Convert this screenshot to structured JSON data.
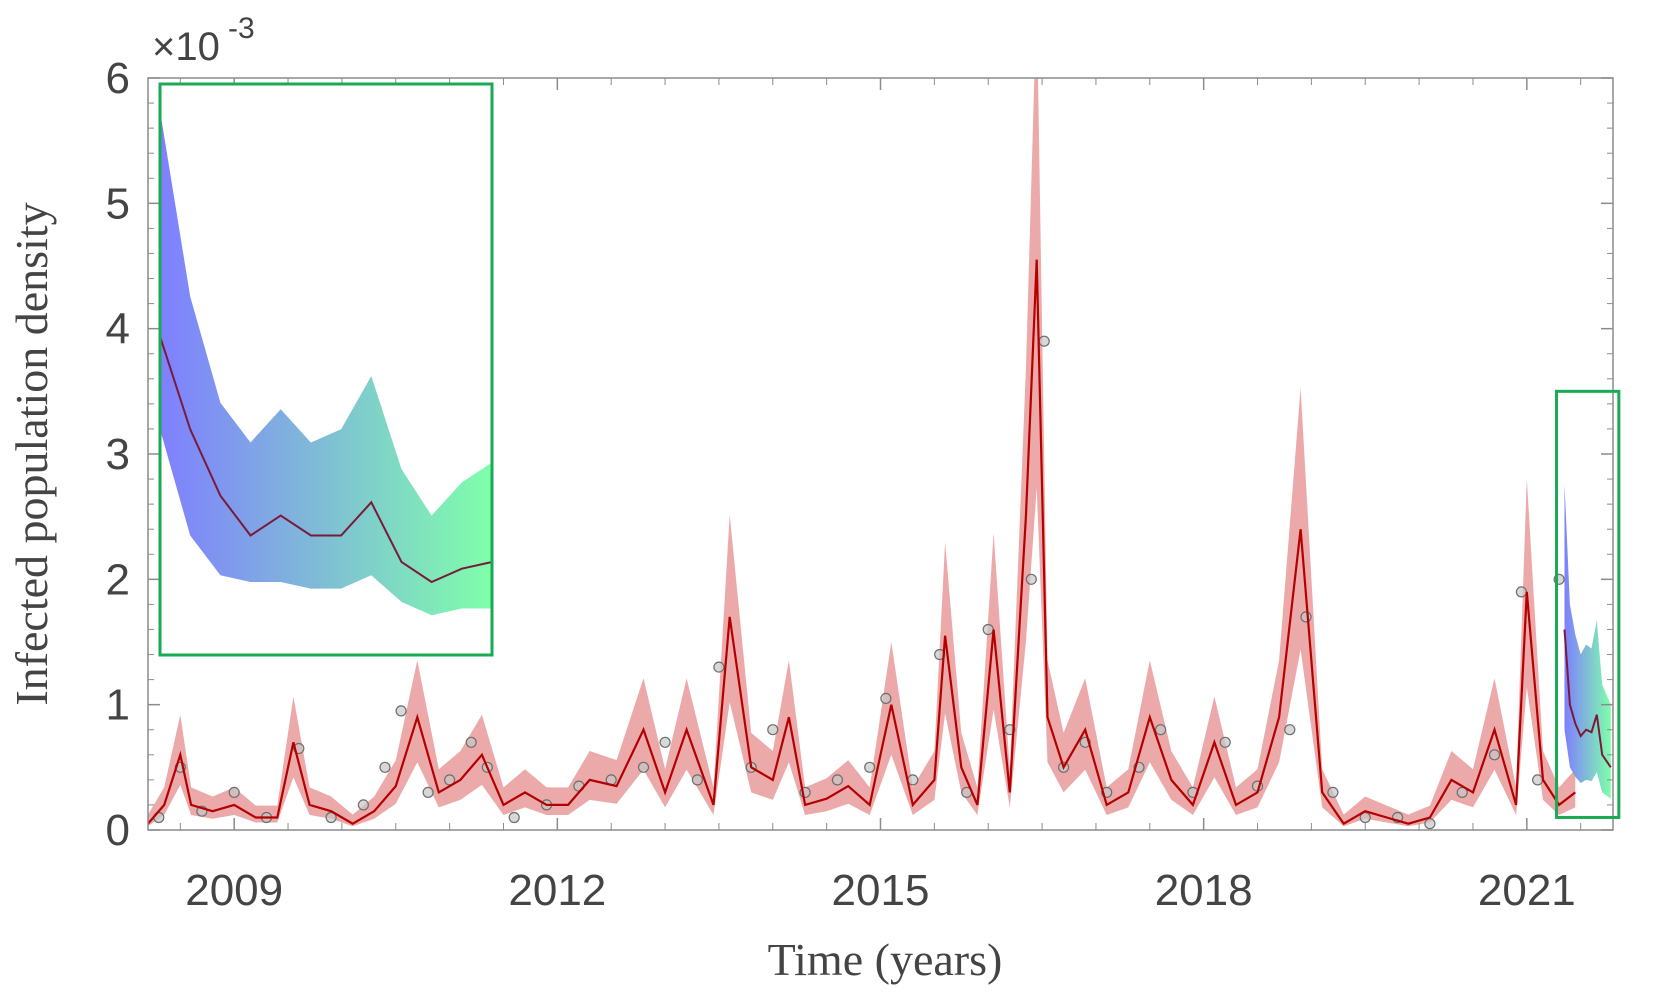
{
  "chart_data": {
    "type": "line",
    "xlabel": "Time (years)",
    "ylabel": "Infected population density",
    "y_exponent_label": "×10",
    "y_exponent_power": "-3",
    "xlim": [
      2008.2,
      2021.8
    ],
    "ylim": [
      0,
      6
    ],
    "x_ticks": [
      2009,
      2012,
      2015,
      2018,
      2021
    ],
    "x_tick_labels": [
      "2009",
      "2012",
      "2015",
      "2018",
      "2021"
    ],
    "y_ticks": [
      0,
      1,
      2,
      3,
      4,
      5,
      6
    ],
    "y_tick_labels": [
      "0",
      "1",
      "2",
      "3",
      "4",
      "5",
      "6"
    ],
    "grid": false,
    "colors": {
      "model_line": "#b40000",
      "model_band": "#e07070",
      "observations_fill": "#c8c8c8",
      "observations_edge": "#6e6e6e",
      "forecast_start": "#7f7fff",
      "forecast_end": "#7fffaa",
      "forecast_line": "#7a1a3a",
      "highlight_box": "#1aaa55",
      "axis": "#8c8c8c",
      "text": "#444444"
    },
    "series": [
      {
        "kind": "model_mean",
        "x": [
          2008.2,
          2008.35,
          2008.5,
          2008.6,
          2008.8,
          2009.0,
          2009.2,
          2009.4,
          2009.55,
          2009.7,
          2009.9,
          2010.1,
          2010.3,
          2010.5,
          2010.7,
          2010.9,
          2011.1,
          2011.3,
          2011.5,
          2011.7,
          2011.9,
          2012.1,
          2012.3,
          2012.55,
          2012.8,
          2013.0,
          2013.2,
          2013.45,
          2013.6,
          2013.8,
          2014.0,
          2014.15,
          2014.3,
          2014.5,
          2014.7,
          2014.9,
          2015.1,
          2015.3,
          2015.5,
          2015.6,
          2015.75,
          2015.9,
          2016.05,
          2016.2,
          2016.35,
          2016.45,
          2016.55,
          2016.7,
          2016.9,
          2017.1,
          2017.3,
          2017.5,
          2017.7,
          2017.9,
          2018.1,
          2018.3,
          2018.5,
          2018.7,
          2018.9,
          2019.1,
          2019.3,
          2019.5,
          2019.7,
          2019.9,
          2020.1,
          2020.3,
          2020.5,
          2020.7,
          2020.9,
          2021.0,
          2021.15,
          2021.3,
          2021.45
        ],
        "y": [
          0.05,
          0.2,
          0.6,
          0.2,
          0.15,
          0.2,
          0.1,
          0.1,
          0.7,
          0.2,
          0.15,
          0.05,
          0.15,
          0.35,
          0.9,
          0.3,
          0.4,
          0.6,
          0.2,
          0.3,
          0.2,
          0.2,
          0.4,
          0.35,
          0.8,
          0.3,
          0.8,
          0.2,
          1.7,
          0.5,
          0.4,
          0.9,
          0.2,
          0.25,
          0.35,
          0.2,
          1.0,
          0.2,
          0.4,
          1.55,
          0.5,
          0.2,
          1.6,
          0.3,
          2.5,
          4.55,
          0.9,
          0.5,
          0.8,
          0.2,
          0.3,
          0.9,
          0.4,
          0.2,
          0.7,
          0.2,
          0.3,
          0.9,
          2.4,
          0.3,
          0.05,
          0.15,
          0.1,
          0.05,
          0.1,
          0.4,
          0.3,
          0.8,
          0.2,
          1.9,
          0.4,
          0.2,
          0.3
        ]
      },
      {
        "kind": "observations",
        "x": [
          2008.3,
          2008.5,
          2008.7,
          2009.0,
          2009.3,
          2009.6,
          2009.9,
          2010.2,
          2010.4,
          2010.55,
          2010.8,
          2011.0,
          2011.2,
          2011.35,
          2011.6,
          2011.9,
          2012.2,
          2012.5,
          2012.8,
          2013.0,
          2013.3,
          2013.5,
          2013.8,
          2014.0,
          2014.3,
          2014.6,
          2014.9,
          2015.05,
          2015.3,
          2015.55,
          2015.8,
          2016.0,
          2016.2,
          2016.4,
          2016.52,
          2016.7,
          2016.9,
          2017.1,
          2017.4,
          2017.6,
          2017.9,
          2018.2,
          2018.5,
          2018.8,
          2018.95,
          2019.2,
          2019.5,
          2019.8,
          2020.1,
          2020.4,
          2020.7,
          2020.95,
          2021.1,
          2021.3
        ],
        "y": [
          0.1,
          0.5,
          0.15,
          0.3,
          0.1,
          0.65,
          0.1,
          0.2,
          0.5,
          0.95,
          0.3,
          0.4,
          0.7,
          0.5,
          0.1,
          0.2,
          0.35,
          0.4,
          0.5,
          0.7,
          0.4,
          1.3,
          0.5,
          0.8,
          0.3,
          0.4,
          0.5,
          1.05,
          0.4,
          1.4,
          0.3,
          1.6,
          0.8,
          2.0,
          3.9,
          0.5,
          0.7,
          0.3,
          0.5,
          0.8,
          0.3,
          0.7,
          0.35,
          0.8,
          1.7,
          0.3,
          0.1,
          0.1,
          0.05,
          0.3,
          0.6,
          1.9,
          0.4,
          2.0
        ]
      },
      {
        "kind": "forecast",
        "x": [
          2021.35,
          2021.4,
          2021.45,
          2021.5,
          2021.55,
          2021.6,
          2021.65,
          2021.7,
          2021.78
        ],
        "y": [
          1.6,
          1.0,
          0.85,
          0.75,
          0.8,
          0.78,
          0.92,
          0.6,
          0.5
        ]
      }
    ],
    "inset": {
      "y_mean": [
        3.7,
        3.0,
        2.5,
        2.2,
        2.35,
        2.2,
        2.2,
        2.45,
        2.0,
        1.85,
        1.95,
        2.0
      ],
      "y_lower": [
        3.0,
        2.2,
        1.9,
        1.85,
        1.85,
        1.8,
        1.8,
        1.9,
        1.7,
        1.6,
        1.65,
        1.65
      ],
      "y_upper": [
        5.4,
        4.0,
        3.2,
        2.9,
        3.15,
        2.9,
        3.0,
        3.4,
        2.7,
        2.35,
        2.6,
        2.75
      ]
    }
  }
}
